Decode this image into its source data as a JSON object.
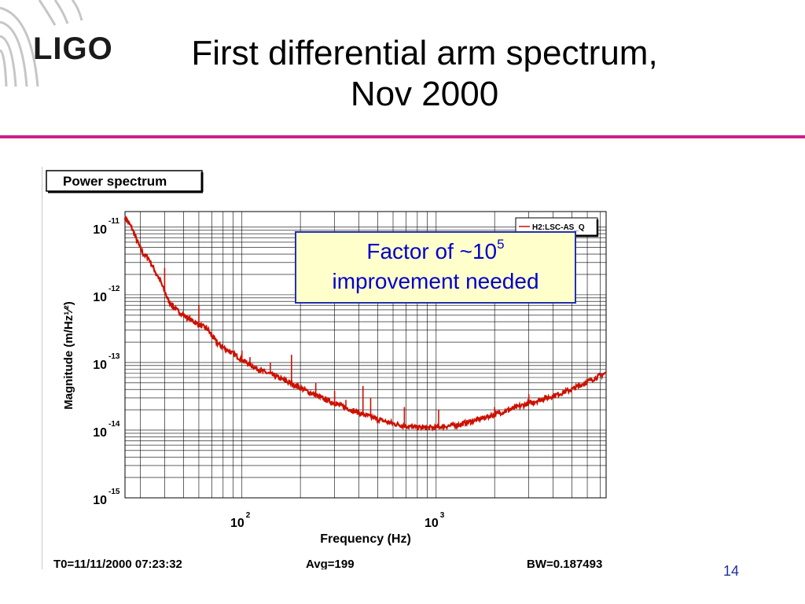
{
  "slide": {
    "logo_text": "LIGO",
    "title_line1": "First differential arm spectrum,",
    "title_line2": "Nov 2000",
    "slide_number": "14",
    "accent_color": "#cc1f8a"
  },
  "callout": {
    "text": "Factor of ~10",
    "superscript": "5",
    "line2": "improvement needed"
  },
  "chart_data": {
    "type": "line",
    "title": "Power spectrum",
    "xlabel": "Frequency (Hz)",
    "ylabel": "Magnitude (m/Hz¹⁄²)",
    "x_scale": "log",
    "y_scale": "log",
    "xlim": [
      25,
      7500
    ],
    "ylim": [
      1e-15,
      1.7e-11
    ],
    "x_ticks": [
      {
        "base": "10",
        "exp": "2",
        "value": 100
      },
      {
        "base": "10",
        "exp": "3",
        "value": 1000
      }
    ],
    "y_ticks": [
      {
        "base": "10",
        "exp": "-11",
        "value": 1e-11
      },
      {
        "base": "10",
        "exp": "-12",
        "value": 1e-12
      },
      {
        "base": "10",
        "exp": "-13",
        "value": 1e-13
      },
      {
        "base": "10",
        "exp": "-14",
        "value": 1e-14
      },
      {
        "base": "10",
        "exp": "-15",
        "value": 1e-15
      }
    ],
    "grid": true,
    "legend_position": "top-right",
    "series": [
      {
        "name": "H2:LSC-AS_Q",
        "color": "#cc1100",
        "points": [
          [
            25,
            1.4e-11
          ],
          [
            27,
            1e-11
          ],
          [
            29,
            6e-12
          ],
          [
            31,
            4e-12
          ],
          [
            33,
            3.5e-12
          ],
          [
            35,
            2.5e-12
          ],
          [
            38,
            1.6e-12
          ],
          [
            42,
            8e-13
          ],
          [
            46,
            6e-13
          ],
          [
            50,
            5e-13
          ],
          [
            55,
            4.2e-13
          ],
          [
            60,
            3.6e-13
          ],
          [
            66,
            3.2e-13
          ],
          [
            70,
            2.5e-13
          ],
          [
            75,
            1.9e-13
          ],
          [
            85,
            1.5e-13
          ],
          [
            100,
            1.1e-13
          ],
          [
            120,
            8e-14
          ],
          [
            150,
            6.2e-14
          ],
          [
            200,
            4.2e-14
          ],
          [
            250,
            3.1e-14
          ],
          [
            300,
            2.5e-14
          ],
          [
            400,
            1.8e-14
          ],
          [
            500,
            1.45e-14
          ],
          [
            600,
            1.25e-14
          ],
          [
            700,
            1.15e-14
          ],
          [
            800,
            1.1e-14
          ],
          [
            900,
            1.08e-14
          ],
          [
            1000,
            1.1e-14
          ],
          [
            1300,
            1.2e-14
          ],
          [
            1600,
            1.4e-14
          ],
          [
            2000,
            1.7e-14
          ],
          [
            2500,
            2.1e-14
          ],
          [
            3000,
            2.5e-14
          ],
          [
            4000,
            3.2e-14
          ],
          [
            5000,
            4e-14
          ],
          [
            6000,
            5.2e-14
          ],
          [
            7500,
            7e-14
          ]
        ],
        "peaks": [
          {
            "x": 36,
            "y": 1.9e-12
          },
          {
            "x": 40,
            "y": 2.5e-12
          },
          {
            "x": 60,
            "y": 7e-13
          },
          {
            "x": 66,
            "y": 3.2e-13
          },
          {
            "x": 100,
            "y": 1.5e-13
          },
          {
            "x": 110,
            "y": 1.2e-13
          },
          {
            "x": 140,
            "y": 1e-13
          },
          {
            "x": 180,
            "y": 1.3e-13
          },
          {
            "x": 240,
            "y": 5e-14
          },
          {
            "x": 300,
            "y": 3.8e-14
          },
          {
            "x": 343,
            "y": 2.8e-14
          },
          {
            "x": 420,
            "y": 4.5e-14
          },
          {
            "x": 460,
            "y": 3e-14
          },
          {
            "x": 686,
            "y": 2.2e-14
          },
          {
            "x": 1030,
            "y": 2e-14
          },
          {
            "x": 2000,
            "y": 2.2e-14
          },
          {
            "x": 3000,
            "y": 3.4e-14
          }
        ]
      }
    ],
    "footer": {
      "t0": "T0=11/11/2000 07:23:32",
      "avg": "Avg=199",
      "bw": "BW=0.187493"
    }
  }
}
